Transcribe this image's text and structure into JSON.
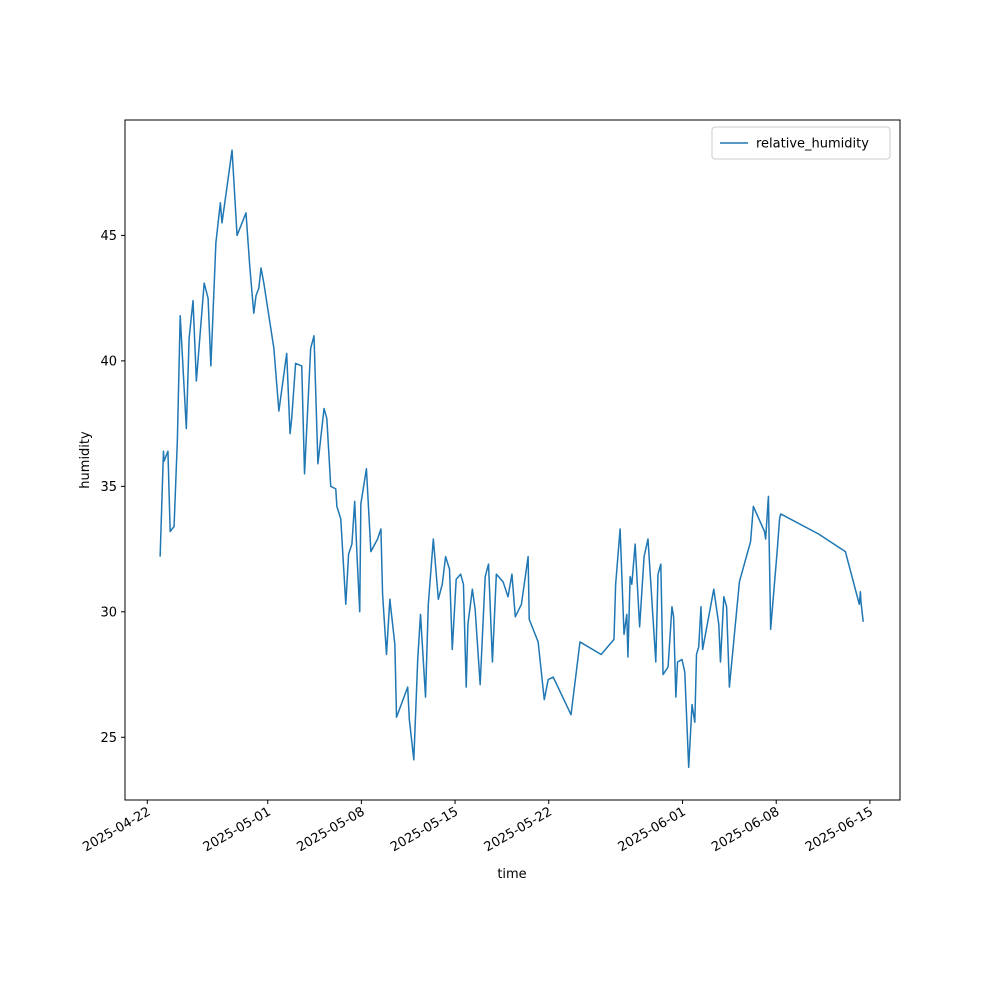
{
  "chart_data": {
    "type": "line",
    "xlabel": "time",
    "ylabel": "humidity",
    "legend": "upper right",
    "grid": false,
    "xlim": [
      "2025-04-20T08:00",
      "2025-06-17T06:00"
    ],
    "xticks": [
      "2025-04-22",
      "2025-05-01",
      "2025-05-08",
      "2025-05-15",
      "2025-05-22",
      "2025-06-01",
      "2025-06-08",
      "2025-06-15"
    ],
    "ylim": [
      22.5,
      49.6
    ],
    "yticks": [
      25,
      30,
      35,
      40,
      45
    ],
    "x": [
      "2025-04-22T23:00",
      "2025-04-23T05:00",
      "2025-04-23T06:00",
      "2025-04-23T13:00",
      "2025-04-23T17:00",
      "2025-04-24T00:00",
      "2025-04-24T06:00",
      "2025-04-24T11:00",
      "2025-04-24T22:00",
      "2025-04-25T03:00",
      "2025-04-25T10:00",
      "2025-04-25T16:00",
      "2025-04-26T06:00",
      "2025-04-26T13:00",
      "2025-04-26T18:00",
      "2025-04-27T03:00",
      "2025-04-27T11:00",
      "2025-04-27T14:00",
      "2025-04-28T08:00",
      "2025-04-28T17:00",
      "2025-04-29T09:00",
      "2025-04-29T16:00",
      "2025-04-29T23:00",
      "2025-04-30T03:00",
      "2025-04-30T08:00",
      "2025-04-30T12:00",
      "2025-04-30T17:00",
      "2025-05-01T11:00",
      "2025-05-01T20:00",
      "2025-05-02T10:00",
      "2025-05-02T16:00",
      "2025-05-02T19:00",
      "2025-05-03T02:00",
      "2025-05-03T13:00",
      "2025-05-03T18:00",
      "2025-05-04T05:00",
      "2025-05-04T11:00",
      "2025-05-04T18:00",
      "2025-05-05T05:00",
      "2025-05-05T10:00",
      "2025-05-05T17:00",
      "2025-05-06T02:00",
      "2025-05-06T04:00",
      "2025-05-06T11:00",
      "2025-05-06T20:00",
      "2025-05-07T01:00",
      "2025-05-07T07:00",
      "2025-05-07T12:00",
      "2025-05-07T16:00",
      "2025-05-07T21:00",
      "2025-05-07T23:00",
      "2025-05-08T09:00",
      "2025-05-08T17:00",
      "2025-05-09T05:00",
      "2025-05-09T11:00",
      "2025-05-09T14:00",
      "2025-05-09T21:00",
      "2025-05-10T03:00",
      "2025-05-10T12:00",
      "2025-05-10T15:00",
      "2025-05-11T11:00",
      "2025-05-11T14:00",
      "2025-05-11T22:00",
      "2025-05-12T05:00",
      "2025-05-12T10:00",
      "2025-05-12T19:00",
      "2025-05-13T00:00",
      "2025-05-13T09:00",
      "2025-05-13T18:00",
      "2025-05-14T01:00",
      "2025-05-14T07:00",
      "2025-05-14T14:00",
      "2025-05-14T19:00",
      "2025-05-15T02:00",
      "2025-05-15T10:00",
      "2025-05-15T15:00",
      "2025-05-15T20:00",
      "2025-05-15T23:00",
      "2025-05-16T07:00",
      "2025-05-16T12:00",
      "2025-05-16T21:00",
      "2025-05-17T06:00",
      "2025-05-17T12:00",
      "2025-05-17T19:00",
      "2025-05-18T02:00",
      "2025-05-18T14:00",
      "2025-05-18T23:00",
      "2025-05-19T06:00",
      "2025-05-19T12:00",
      "2025-05-19T23:00",
      "2025-05-20T11:00",
      "2025-05-20T13:00",
      "2025-05-21T05:00",
      "2025-05-21T16:00",
      "2025-05-21T23:00",
      "2025-05-22T08:00",
      "2025-05-23T16:00",
      "2025-05-24T08:00",
      "2025-05-25T22:00",
      "2025-05-26T21:00",
      "2025-05-27T00:00",
      "2025-05-27T08:00",
      "2025-05-27T15:00",
      "2025-05-27T20:00",
      "2025-05-27T22:00",
      "2025-05-28T02:00",
      "2025-05-28T05:00",
      "2025-05-28T11:00",
      "2025-05-28T19:00",
      "2025-05-29T03:00",
      "2025-05-29T06:00",
      "2025-05-29T10:00",
      "2025-05-30T00:00",
      "2025-05-30T04:00",
      "2025-05-30T09:00",
      "2025-05-30T13:00",
      "2025-05-30T22:00",
      "2025-05-31T05:00",
      "2025-05-31T08:00",
      "2025-05-31T12:00",
      "2025-05-31T15:00",
      "2025-05-31T23:00",
      "2025-06-01T04:00",
      "2025-06-01T11:00",
      "2025-06-01T17:00",
      "2025-06-01T22:00",
      "2025-06-02T01:00",
      "2025-06-02T05:00",
      "2025-06-02T09:00",
      "2025-06-02T12:00",
      "2025-06-03T08:00",
      "2025-06-03T17:00",
      "2025-06-03T20:00",
      "2025-06-04T02:00",
      "2025-06-04T07:00",
      "2025-06-04T12:00",
      "2025-06-05T06:00",
      "2025-06-06T02:00",
      "2025-06-06T07:00",
      "2025-06-07T03:00",
      "2025-06-07T05:00",
      "2025-06-07T10:00",
      "2025-06-07T14:00",
      "2025-06-08T02:00",
      "2025-06-08T06:00",
      "2025-06-08T08:00",
      "2025-06-11T04:00",
      "2025-06-13T04:00",
      "2025-06-14T05:00",
      "2025-06-14T07:00",
      "2025-06-14T08:00",
      "2025-06-14T12:00"
    ],
    "series": [
      {
        "name": "relative_humidity",
        "color": "#1f77b4",
        "values": [
          32.2,
          36.4,
          36.0,
          36.4,
          33.2,
          33.4,
          36.9,
          41.8,
          37.3,
          40.9,
          42.4,
          39.2,
          43.1,
          42.5,
          39.8,
          44.7,
          46.3,
          45.5,
          48.4,
          45.0,
          45.9,
          43.7,
          41.9,
          42.6,
          42.9,
          43.7,
          43.1,
          40.5,
          38.0,
          40.3,
          37.1,
          37.7,
          39.9,
          39.8,
          35.5,
          40.5,
          41.0,
          35.9,
          38.1,
          37.7,
          35.0,
          34.9,
          34.2,
          33.7,
          30.3,
          32.3,
          32.7,
          34.4,
          32.3,
          30.0,
          34.3,
          35.7,
          32.4,
          32.9,
          33.3,
          30.7,
          28.3,
          30.5,
          28.7,
          25.8,
          27.0,
          25.7,
          24.1,
          28.1,
          29.9,
          26.6,
          30.3,
          32.9,
          30.5,
          31.1,
          32.2,
          31.7,
          28.5,
          31.3,
          31.5,
          31.1,
          27.0,
          29.5,
          30.9,
          30.1,
          27.1,
          31.4,
          31.9,
          28.0,
          31.5,
          31.2,
          30.6,
          31.5,
          29.8,
          30.3,
          32.2,
          29.7,
          28.8,
          26.5,
          27.3,
          27.4,
          25.9,
          28.8,
          28.3,
          28.9,
          31.1,
          33.3,
          29.1,
          29.9,
          28.2,
          31.4,
          31.1,
          32.7,
          29.4,
          32.2,
          32.5,
          32.9,
          28.0,
          31.5,
          31.9,
          27.5,
          27.8,
          30.2,
          29.8,
          26.6,
          28.0,
          28.1,
          27.6,
          23.8,
          26.3,
          25.6,
          28.3,
          28.6,
          30.2,
          28.5,
          30.9,
          29.5,
          28.0,
          30.6,
          30.2,
          27.0,
          31.2,
          32.8,
          34.2,
          33.2,
          32.9,
          34.6,
          29.3,
          32.5,
          33.7,
          33.9,
          33.1,
          32.4,
          30.3,
          30.8,
          30.4,
          29.6
        ]
      }
    ]
  }
}
